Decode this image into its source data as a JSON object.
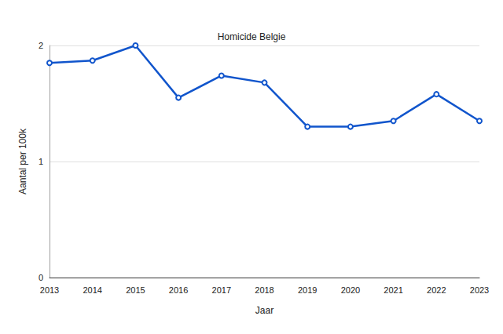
{
  "chart_data": {
    "type": "line",
    "title": "Homicide Belgie",
    "x_label": "Jaar",
    "y_label": "Aantal per 100k",
    "categories": [
      "2013",
      "2014",
      "2015",
      "2016",
      "2017",
      "2018",
      "2019",
      "2020",
      "2021",
      "2022",
      "2023"
    ],
    "values": [
      1.85,
      1.87,
      2.0,
      1.55,
      1.74,
      1.68,
      1.3,
      1.3,
      1.35,
      1.58,
      1.35
    ],
    "color": "#1155cc",
    "marker": "circle",
    "ylim": [
      0,
      2
    ],
    "yticks": [
      0,
      1,
      2
    ],
    "grid": true
  }
}
